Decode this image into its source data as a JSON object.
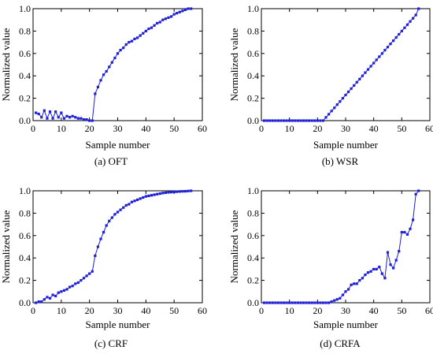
{
  "chart_data": [
    {
      "type": "line",
      "caption": "(a) OFT",
      "xlabel": "Sample number",
      "ylabel": "Normalized value",
      "xlim": [
        0,
        60
      ],
      "ylim": [
        0,
        1
      ],
      "xticks": [
        "0",
        "10",
        "20",
        "30",
        "40",
        "50",
        "60"
      ],
      "yticks": [
        "0.0",
        "0.2",
        "0.4",
        "0.6",
        "0.8",
        "1.0"
      ],
      "color": "#1f1fd6",
      "x": [
        1,
        2,
        3,
        4,
        5,
        6,
        7,
        8,
        9,
        10,
        11,
        12,
        13,
        14,
        15,
        16,
        17,
        18,
        19,
        20,
        21,
        22,
        23,
        24,
        25,
        26,
        27,
        28,
        29,
        30,
        31,
        32,
        33,
        34,
        35,
        36,
        37,
        38,
        39,
        40,
        41,
        42,
        43,
        44,
        45,
        46,
        47,
        48,
        49,
        50,
        51,
        52,
        53,
        54,
        55,
        56
      ],
      "y": [
        0.07,
        0.06,
        0.03,
        0.09,
        0.02,
        0.08,
        0.02,
        0.08,
        0.03,
        0.07,
        0.02,
        0.04,
        0.03,
        0.04,
        0.03,
        0.02,
        0.02,
        0.01,
        0.01,
        0.0,
        0.0,
        0.24,
        0.3,
        0.36,
        0.41,
        0.44,
        0.48,
        0.52,
        0.56,
        0.6,
        0.63,
        0.65,
        0.68,
        0.7,
        0.71,
        0.73,
        0.74,
        0.76,
        0.78,
        0.8,
        0.82,
        0.83,
        0.85,
        0.87,
        0.88,
        0.9,
        0.91,
        0.92,
        0.93,
        0.95,
        0.96,
        0.97,
        0.98,
        0.99,
        1.0,
        1.0
      ]
    },
    {
      "type": "line",
      "caption": "(b) WSR",
      "xlabel": "Sample number",
      "ylabel": "Normalized value",
      "xlim": [
        0,
        60
      ],
      "ylim": [
        0,
        1
      ],
      "xticks": [
        "0",
        "10",
        "20",
        "30",
        "40",
        "50",
        "60"
      ],
      "yticks": [
        "0.0",
        "0.2",
        "0.4",
        "0.6",
        "0.8",
        "1.0"
      ],
      "color": "#1f1fd6",
      "x": [
        1,
        2,
        3,
        4,
        5,
        6,
        7,
        8,
        9,
        10,
        11,
        12,
        13,
        14,
        15,
        16,
        17,
        18,
        19,
        20,
        21,
        22,
        23,
        24,
        25,
        26,
        27,
        28,
        29,
        30,
        31,
        32,
        33,
        34,
        35,
        36,
        37,
        38,
        39,
        40,
        41,
        42,
        43,
        44,
        45,
        46,
        47,
        48,
        49,
        50,
        51,
        52,
        53,
        54,
        55,
        56
      ],
      "y": [
        0.0,
        0.0,
        0.0,
        0.0,
        0.0,
        0.0,
        0.0,
        0.0,
        0.0,
        0.0,
        0.0,
        0.0,
        0.0,
        0.0,
        0.0,
        0.0,
        0.0,
        0.0,
        0.0,
        0.0,
        0.0,
        0.0,
        0.029,
        0.057,
        0.086,
        0.114,
        0.143,
        0.171,
        0.2,
        0.229,
        0.257,
        0.286,
        0.314,
        0.343,
        0.371,
        0.4,
        0.429,
        0.457,
        0.486,
        0.514,
        0.543,
        0.571,
        0.6,
        0.629,
        0.657,
        0.686,
        0.714,
        0.743,
        0.771,
        0.8,
        0.829,
        0.857,
        0.886,
        0.914,
        0.943,
        1.0
      ]
    },
    {
      "type": "line",
      "caption": "(c) CRF",
      "xlabel": "Sample number",
      "ylabel": "Normalized value",
      "xlim": [
        0,
        60
      ],
      "ylim": [
        0,
        1
      ],
      "xticks": [
        "0",
        "10",
        "20",
        "30",
        "40",
        "50",
        "60"
      ],
      "yticks": [
        "0.0",
        "0.2",
        "0.4",
        "0.6",
        "0.8",
        "1.0"
      ],
      "color": "#1f1fd6",
      "x": [
        1,
        2,
        3,
        4,
        5,
        6,
        7,
        8,
        9,
        10,
        11,
        12,
        13,
        14,
        15,
        16,
        17,
        18,
        19,
        20,
        21,
        22,
        23,
        24,
        25,
        26,
        27,
        28,
        29,
        30,
        31,
        32,
        33,
        34,
        35,
        36,
        37,
        38,
        39,
        40,
        41,
        42,
        43,
        44,
        45,
        46,
        47,
        48,
        49,
        50,
        51,
        52,
        53,
        54,
        55,
        56
      ],
      "y": [
        0.0,
        0.01,
        0.01,
        0.03,
        0.05,
        0.04,
        0.07,
        0.06,
        0.09,
        0.1,
        0.11,
        0.12,
        0.14,
        0.15,
        0.17,
        0.18,
        0.2,
        0.22,
        0.24,
        0.26,
        0.28,
        0.42,
        0.5,
        0.57,
        0.63,
        0.69,
        0.73,
        0.76,
        0.79,
        0.81,
        0.83,
        0.85,
        0.87,
        0.88,
        0.9,
        0.91,
        0.92,
        0.93,
        0.94,
        0.95,
        0.955,
        0.96,
        0.965,
        0.97,
        0.975,
        0.98,
        0.983,
        0.986,
        0.988,
        0.99,
        0.992,
        0.994,
        0.995,
        0.996,
        0.998,
        1.0
      ]
    },
    {
      "type": "line",
      "caption": "(d) CRFA",
      "xlabel": "Sample number",
      "ylabel": "Normalized value",
      "xlim": [
        0,
        60
      ],
      "ylim": [
        0,
        1
      ],
      "xticks": [
        "0",
        "10",
        "20",
        "30",
        "40",
        "50",
        "60"
      ],
      "yticks": [
        "0.0",
        "0.2",
        "0.4",
        "0.6",
        "0.8",
        "1.0"
      ],
      "color": "#1f1fd6",
      "x": [
        1,
        2,
        3,
        4,
        5,
        6,
        7,
        8,
        9,
        10,
        11,
        12,
        13,
        14,
        15,
        16,
        17,
        18,
        19,
        20,
        21,
        22,
        23,
        24,
        25,
        26,
        27,
        28,
        29,
        30,
        31,
        32,
        33,
        34,
        35,
        36,
        37,
        38,
        39,
        40,
        41,
        42,
        43,
        44,
        45,
        46,
        47,
        48,
        49,
        50,
        51,
        52,
        53,
        54,
        55,
        56
      ],
      "y": [
        0.0,
        0.0,
        0.0,
        0.0,
        0.0,
        0.0,
        0.0,
        0.0,
        0.0,
        0.0,
        0.0,
        0.0,
        0.0,
        0.0,
        0.0,
        0.0,
        0.0,
        0.0,
        0.0,
        0.0,
        0.0,
        0.0,
        0.0,
        0.0,
        0.01,
        0.02,
        0.03,
        0.04,
        0.07,
        0.1,
        0.12,
        0.16,
        0.17,
        0.17,
        0.2,
        0.22,
        0.25,
        0.27,
        0.28,
        0.3,
        0.3,
        0.32,
        0.26,
        0.22,
        0.45,
        0.34,
        0.31,
        0.38,
        0.46,
        0.63,
        0.63,
        0.61,
        0.66,
        0.74,
        0.97,
        1.0
      ]
    }
  ]
}
